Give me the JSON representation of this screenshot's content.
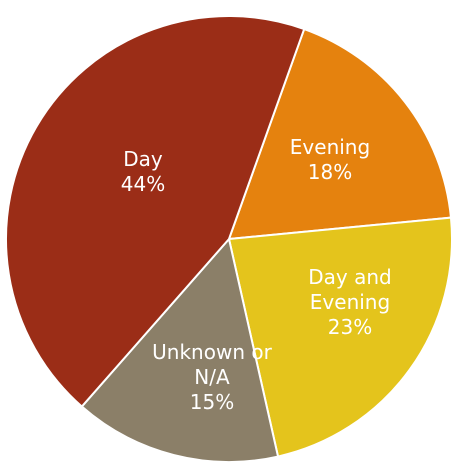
{
  "chart_data": {
    "type": "pie",
    "categories": [
      "Evening",
      "Day and Evening",
      "Unknown or N/A",
      "Day"
    ],
    "values": [
      18,
      23,
      15,
      44
    ],
    "value_labels": [
      "18%",
      "23%",
      "15%",
      "44%"
    ],
    "colors": [
      "#e5820e",
      "#e4c41c",
      "#8b7f68",
      "#9b2d17"
    ]
  }
}
